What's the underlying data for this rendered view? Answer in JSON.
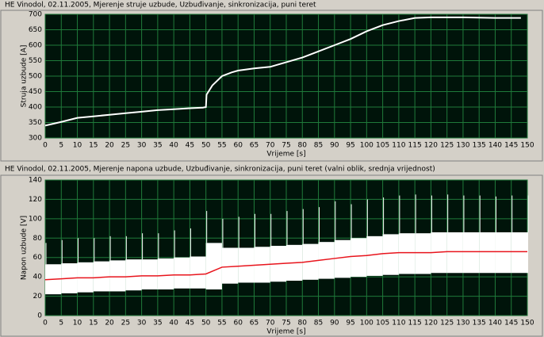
{
  "chart_data": [
    {
      "type": "line",
      "title": "HE Vinodol, 02.11.2005, Mjerenje struje uzbude, Uzbuđivanje, sinkronizacija, puni teret",
      "x_label": "Vrijeme [s]",
      "y_label": "Struja uzbude [A]",
      "x": [
        0,
        5,
        10,
        15,
        20,
        25,
        30,
        35,
        40,
        45,
        49,
        50,
        50.2,
        52,
        55,
        58,
        60,
        65,
        70,
        75,
        80,
        85,
        90,
        95,
        100,
        105,
        110,
        115,
        120,
        125,
        130,
        135,
        140,
        145,
        148
      ],
      "series": [
        {
          "color": "#ffffff",
          "values": [
            340,
            352,
            365,
            370,
            375,
            380,
            385,
            390,
            393,
            396,
            398,
            400,
            440,
            470,
            500,
            512,
            518,
            525,
            530,
            545,
            560,
            580,
            600,
            620,
            645,
            665,
            678,
            688,
            690,
            690,
            690,
            689,
            688,
            688,
            688
          ]
        }
      ],
      "xlim": [
        0,
        150
      ],
      "xticks": [
        0,
        5,
        10,
        15,
        20,
        25,
        30,
        35,
        40,
        45,
        50,
        55,
        60,
        65,
        70,
        75,
        80,
        85,
        90,
        95,
        100,
        105,
        110,
        115,
        120,
        125,
        130,
        135,
        140,
        145,
        150
      ],
      "ylim": [
        300,
        700
      ],
      "yticks": [
        300,
        350,
        400,
        450,
        500,
        550,
        600,
        650,
        700
      ],
      "grid": true,
      "background": "#00140a",
      "grid_color": "#1f7a3a"
    },
    {
      "type": "range",
      "title": "HE Vinodol, 02.11.2005, Mjerenje napona uzbude, Uzbuđivanje, sinkronizacija, puni teret (valni oblik, srednja vrijednost)",
      "x_label": "Vrijeme [s]",
      "y_label": "Napon uzbude [V]",
      "x": [
        0,
        5,
        10,
        15,
        20,
        25,
        30,
        35,
        40,
        45,
        50,
        55,
        60,
        65,
        70,
        75,
        80,
        85,
        90,
        95,
        100,
        105,
        110,
        115,
        120,
        125,
        130,
        135,
        140,
        145,
        150
      ],
      "series": [
        {
          "color": "#ffffff",
          "values": [
            22,
            23,
            24,
            25,
            25,
            26,
            27,
            27,
            28,
            28,
            27,
            33,
            34,
            34,
            35,
            36,
            37,
            38,
            39,
            40,
            41,
            42,
            43,
            43,
            44,
            44,
            44,
            44,
            44,
            44,
            44
          ]
        },
        {
          "color": "#ffffff",
          "values": [
            53,
            54,
            55,
            56,
            57,
            58,
            58,
            59,
            60,
            61,
            75,
            70,
            70,
            71,
            72,
            73,
            74,
            76,
            78,
            80,
            82,
            84,
            85,
            85,
            86,
            86,
            86,
            86,
            86,
            86,
            86
          ]
        },
        {
          "color": "#ffffff",
          "values": [
            75,
            78,
            80,
            80,
            82,
            82,
            85,
            85,
            88,
            90,
            108,
            100,
            102,
            105,
            105,
            108,
            110,
            112,
            118,
            115,
            120,
            122,
            124,
            125,
            124,
            125,
            124,
            124,
            123,
            124,
            124
          ]
        },
        {
          "color": "#e8141c",
          "values": [
            37,
            38,
            39,
            39,
            40,
            40,
            41,
            41,
            42,
            42,
            43,
            50,
            51,
            52,
            53,
            54,
            55,
            57,
            59,
            61,
            62,
            64,
            65,
            65,
            65,
            66,
            66,
            66,
            66,
            66,
            66
          ]
        }
      ],
      "xlim": [
        0,
        150
      ],
      "xticks": [
        0,
        5,
        10,
        15,
        20,
        25,
        30,
        35,
        40,
        45,
        50,
        55,
        60,
        65,
        70,
        75,
        80,
        85,
        90,
        95,
        100,
        105,
        110,
        115,
        120,
        125,
        130,
        135,
        140,
        145,
        150
      ],
      "ylim": [
        0,
        140
      ],
      "yticks": [
        0,
        20,
        40,
        60,
        80,
        100,
        120,
        140
      ],
      "grid": true,
      "background": "#00140a",
      "grid_color": "#1f7a3a"
    }
  ]
}
